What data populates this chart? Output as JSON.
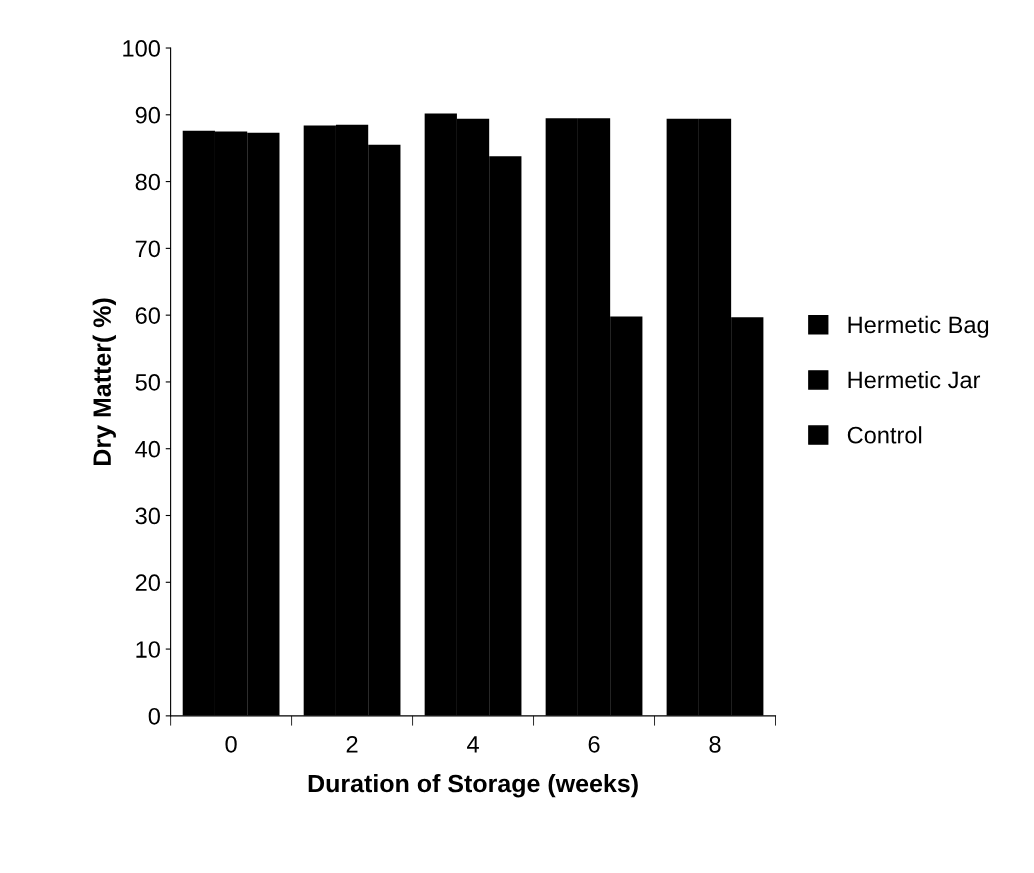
{
  "chart_data": {
    "type": "bar",
    "xlabel": "Duration of Storage (weeks)",
    "ylabel": "Dry Matter( %)",
    "categories": [
      "0",
      "2",
      "4",
      "6",
      "8"
    ],
    "series": [
      {
        "name": "Hermetic Bag",
        "color": "#000000",
        "values": [
          87.6,
          88.4,
          90.2,
          89.5,
          89.4
        ]
      },
      {
        "name": "Hermetic Jar",
        "color": "#000000",
        "values": [
          87.5,
          88.5,
          89.4,
          89.5,
          89.4
        ]
      },
      {
        "name": "Control",
        "color": "#000000",
        "values": [
          87.3,
          85.5,
          83.8,
          59.8,
          59.7
        ]
      }
    ],
    "ylim": [
      0,
      100
    ],
    "yticks": [
      0,
      10,
      20,
      30,
      40,
      50,
      60,
      70,
      80,
      90,
      100
    ],
    "grid": false,
    "legend": "right"
  }
}
